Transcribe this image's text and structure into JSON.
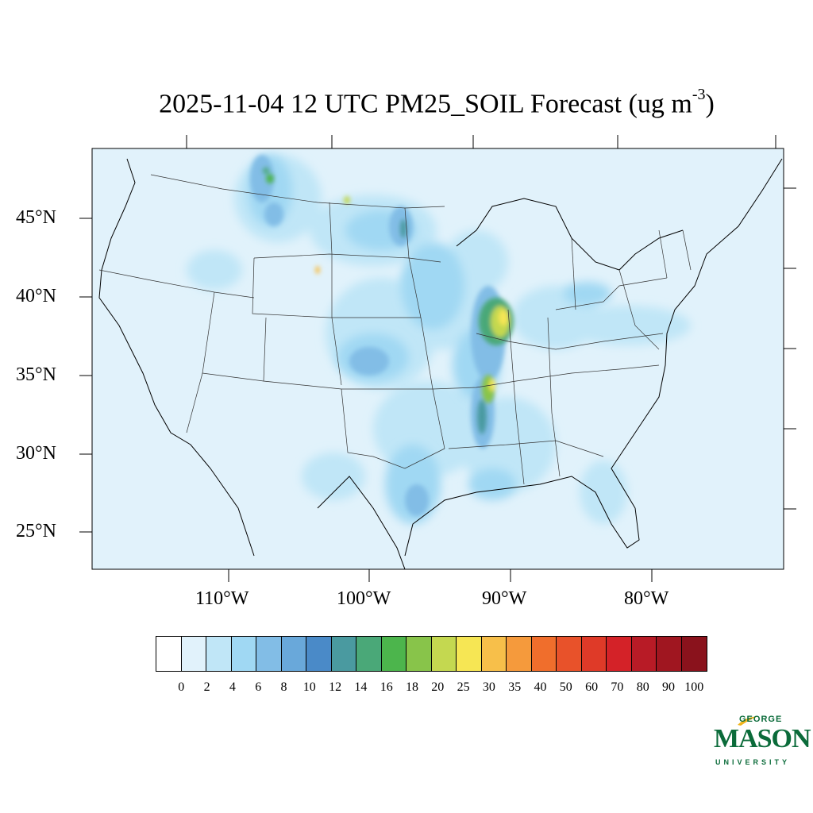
{
  "title": {
    "main": "2025-11-04 12 UTC PM25_SOIL Forecast (ug m",
    "sup": "-3",
    "close": ")"
  },
  "axes": {
    "lat_labels": [
      "45°N",
      "40°N",
      "35°N",
      "30°N",
      "25°N"
    ],
    "lon_labels": [
      "110°W",
      "100°W",
      "90°W",
      "80°W"
    ]
  },
  "colorbar": {
    "labels": [
      "0",
      "2",
      "4",
      "6",
      "8",
      "10",
      "12",
      "14",
      "16",
      "18",
      "20",
      "25",
      "30",
      "35",
      "40",
      "50",
      "60",
      "70",
      "80",
      "90",
      "100"
    ],
    "colors": [
      "#ffffff",
      "#e1f2fb",
      "#c0e6f7",
      "#a0d8f3",
      "#82bde6",
      "#69a8da",
      "#4a8ac8",
      "#4a9aa0",
      "#4aa878",
      "#4cb54c",
      "#88c44a",
      "#c4d850",
      "#f6e654",
      "#f7bf4a",
      "#f59a3c",
      "#f06e2c",
      "#e8522a",
      "#df3a28",
      "#d42228",
      "#b81b26",
      "#a01620",
      "#8a121c"
    ]
  },
  "logo": {
    "line1": "GEORGE",
    "line2": "MASON",
    "line3": "UNIVERSITY"
  }
}
